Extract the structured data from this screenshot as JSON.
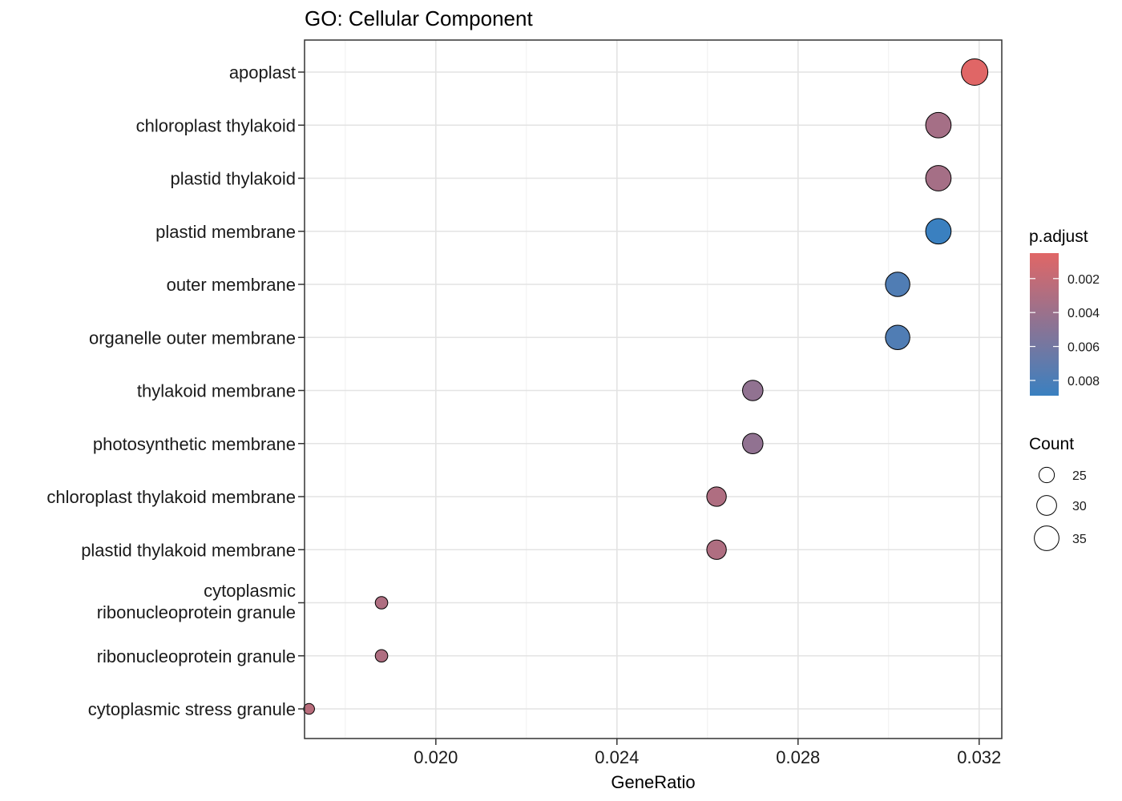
{
  "chart_data": {
    "type": "scatter",
    "title": "GO: Cellular Component",
    "xlabel": "GeneRatio",
    "ylabel": "",
    "xlim": [
      0.0171,
      0.0325
    ],
    "x_ticks": [
      "0.020",
      "0.024",
      "0.028",
      "0.032"
    ],
    "x_tick_values": [
      0.02,
      0.024,
      0.028,
      0.032
    ],
    "grid": true,
    "legend_placement": "right",
    "color_scale": {
      "title": "p.adjust",
      "low_color": "#e06666",
      "high_color": "#3a80c0",
      "min": 0.0005,
      "max": 0.0089,
      "ticks": [
        "0.002",
        "0.004",
        "0.006",
        "0.008"
      ],
      "tick_values": [
        0.002,
        0.004,
        0.006,
        0.008
      ]
    },
    "size_legend": {
      "title": "Count",
      "labels": [
        "25",
        "30",
        "35"
      ],
      "values": [
        25,
        30,
        35
      ]
    },
    "categories": [
      "apoplast",
      "chloroplast thylakoid",
      "plastid thylakoid",
      "plastid membrane",
      "outer membrane",
      "organelle outer membrane",
      "thylakoid membrane",
      "photosynthetic membrane",
      "chloroplast thylakoid membrane",
      "plastid thylakoid membrane",
      "cytoplasmic\nribonucleoprotein granule",
      "ribonucleoprotein granule",
      "cytoplasmic stress granule"
    ],
    "points": [
      {
        "category": "apoplast",
        "x": 0.0319,
        "count": 36,
        "p_adjust": 0.0005
      },
      {
        "category": "chloroplast thylakoid",
        "x": 0.0311,
        "count": 35,
        "p_adjust": 0.0035
      },
      {
        "category": "plastid thylakoid",
        "x": 0.0311,
        "count": 35,
        "p_adjust": 0.0035
      },
      {
        "category": "plastid membrane",
        "x": 0.0311,
        "count": 35,
        "p_adjust": 0.0089
      },
      {
        "category": "outer membrane",
        "x": 0.0302,
        "count": 34,
        "p_adjust": 0.0078
      },
      {
        "category": "organelle outer membrane",
        "x": 0.0302,
        "count": 34,
        "p_adjust": 0.0078
      },
      {
        "category": "thylakoid membrane",
        "x": 0.027,
        "count": 30,
        "p_adjust": 0.0045
      },
      {
        "category": "photosynthetic membrane",
        "x": 0.027,
        "count": 30,
        "p_adjust": 0.0045
      },
      {
        "category": "chloroplast thylakoid membrane",
        "x": 0.0262,
        "count": 29,
        "p_adjust": 0.003
      },
      {
        "category": "plastid thylakoid membrane",
        "x": 0.0262,
        "count": 29,
        "p_adjust": 0.003
      },
      {
        "category": "cytoplasmic\nribonucleoprotein granule",
        "x": 0.0188,
        "count": 21,
        "p_adjust": 0.003
      },
      {
        "category": "ribonucleoprotein granule",
        "x": 0.0188,
        "count": 21,
        "p_adjust": 0.003
      },
      {
        "category": "cytoplasmic stress granule",
        "x": 0.0172,
        "count": 19,
        "p_adjust": 0.0025
      }
    ]
  }
}
